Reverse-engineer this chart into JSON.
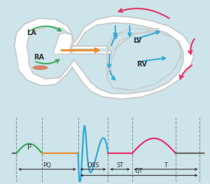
{
  "bg_color": "#cce4ea",
  "heart_bg": "#cce4ea",
  "ecg_bg": "#cce4ea",
  "heart_wall_color": "#c8c8c8",
  "heart_wall_lw": 1.2,
  "sa_node_color": "#d4856a",
  "green_arrow_color": "#3aaa5a",
  "orange_arrow_color": "#e89030",
  "blue_arrow_color": "#30a8d8",
  "pink_arrow_color": "#e8306a",
  "label_LA": "LA",
  "label_RA": "RA",
  "label_LV": "LV",
  "label_RV": "RV",
  "ecg_p_color": "#3aaa5a",
  "ecg_pq_color": "#e89030",
  "ecg_qrs_color": "#30a8d8",
  "ecg_st_color": "#e8306a",
  "ecg_t_color": "#e8306a",
  "label_P": "P",
  "label_PQ": "PQ",
  "label_QRS": "QRS",
  "label_ST": "ST",
  "label_QT": "QT",
  "label_T": "T",
  "dashed_line_color": "#888888",
  "text_color": "#333333",
  "fontsize_labels": 7,
  "fontsize_seg": 6.0
}
